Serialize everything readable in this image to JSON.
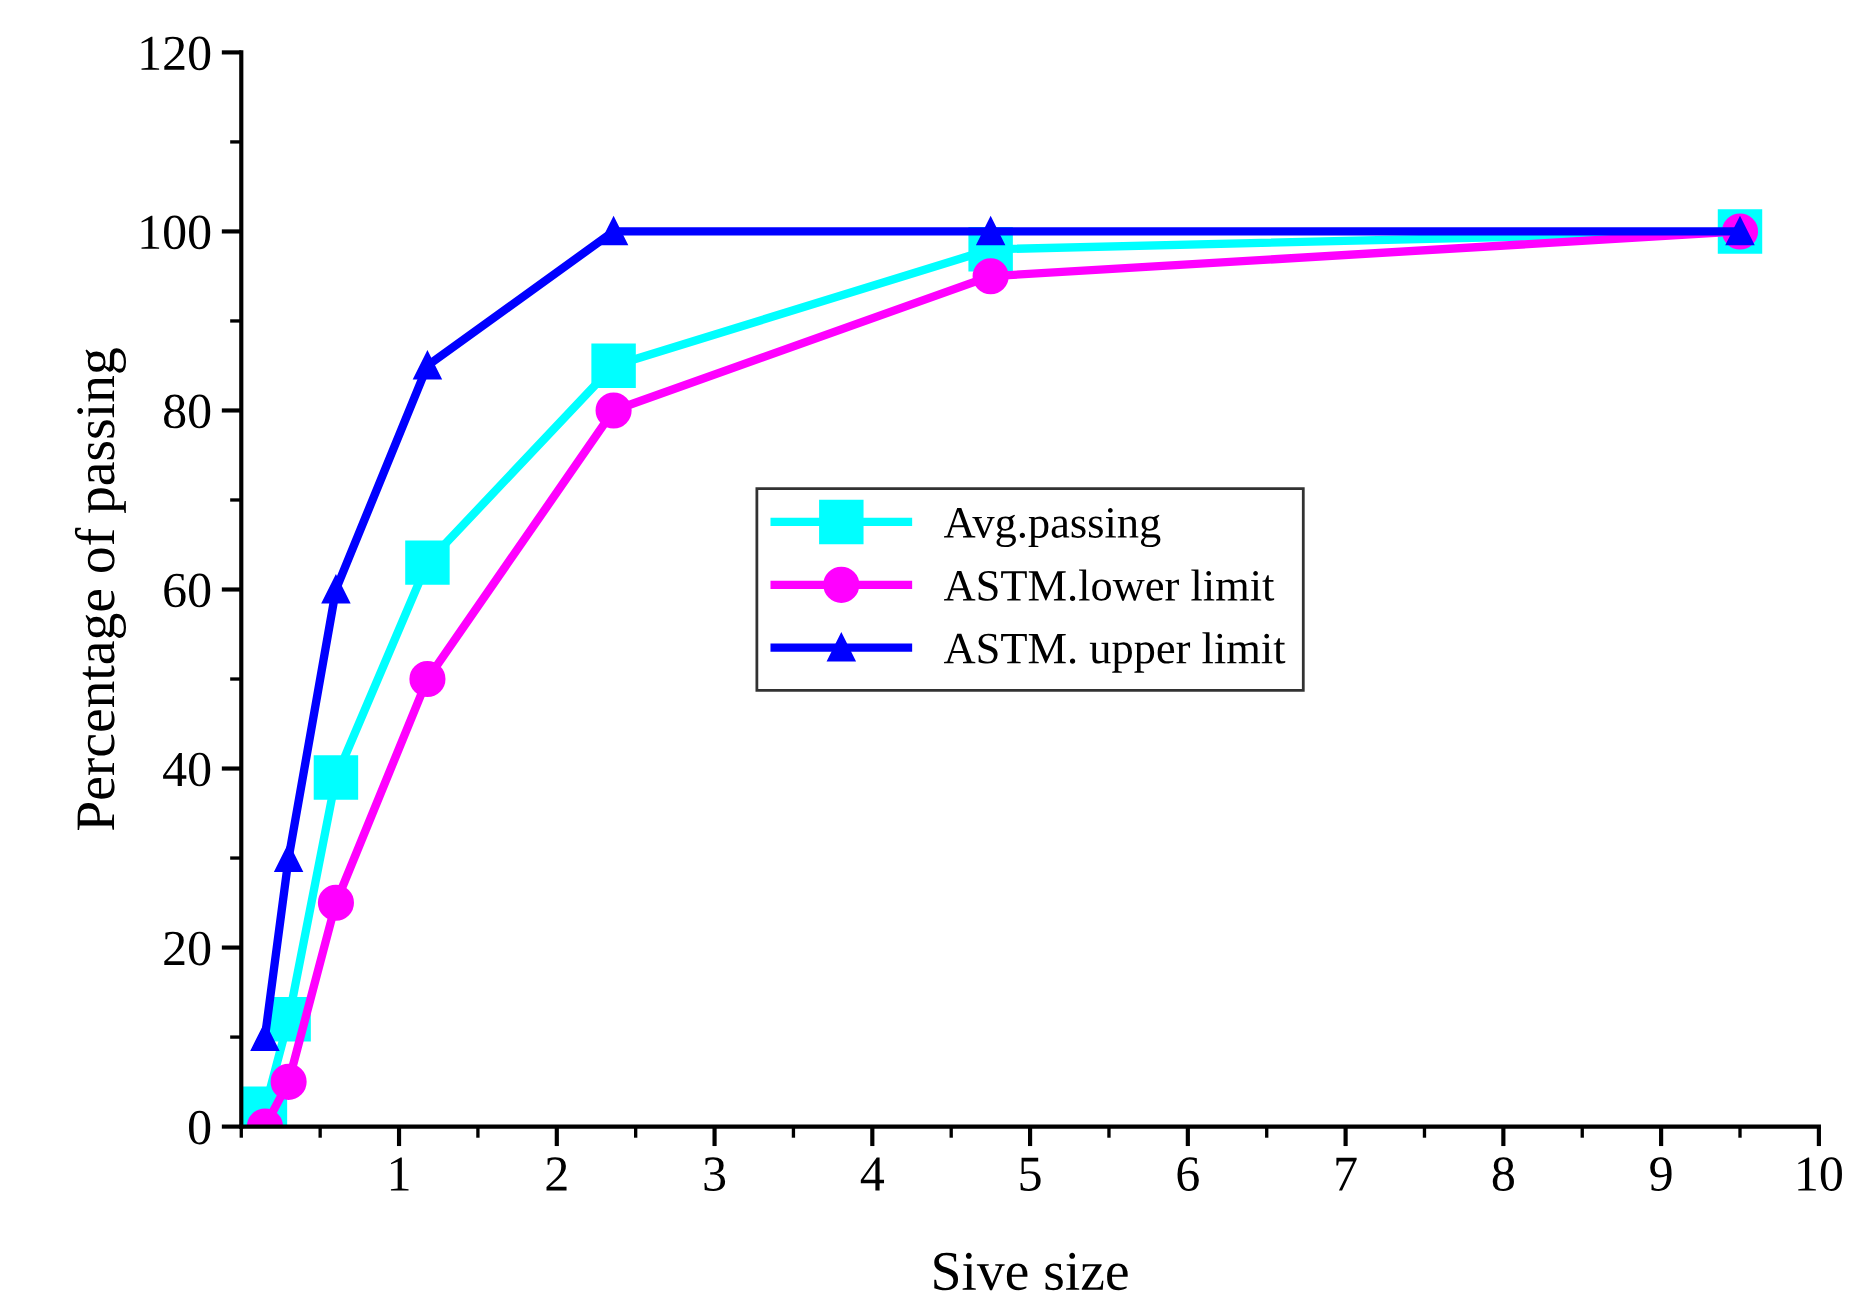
{
  "chart_data": {
    "type": "line",
    "xlabel": "Sive size",
    "ylabel": "Percentage of passing",
    "x": [
      0.15,
      0.3,
      0.6,
      1.18,
      2.36,
      4.75,
      9.5
    ],
    "series": [
      {
        "name": "Avg.passing",
        "color": "#00ffff",
        "marker": "square",
        "values": [
          2,
          12,
          39,
          63,
          85,
          98,
          100
        ]
      },
      {
        "name": "ASTM.lower limit",
        "color": "#ff00ff",
        "marker": "circle",
        "values": [
          0,
          5,
          25,
          50,
          80,
          95,
          100
        ]
      },
      {
        "name": "ASTM. upper limit",
        "color": "#0000ff",
        "marker": "triangle",
        "values": [
          10,
          30,
          60,
          85,
          100,
          100,
          100
        ]
      }
    ],
    "xlim": [
      0,
      10
    ],
    "xticks": [
      1,
      2,
      3,
      4,
      5,
      6,
      7,
      8,
      9,
      10
    ],
    "ylim": [
      0,
      120
    ],
    "yticks": [
      0,
      20,
      40,
      60,
      80,
      100,
      120
    ],
    "grid": false,
    "legend": "center"
  }
}
